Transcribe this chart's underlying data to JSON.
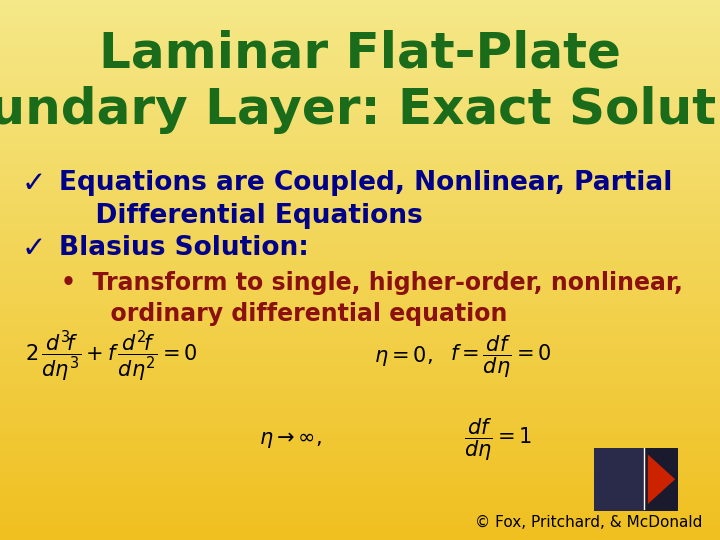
{
  "title_line1": "Laminar Flat-Plate",
  "title_line2": "Boundary Layer: Exact Solution",
  "title_color": "#1a6b1a",
  "title_fontsize": 36,
  "bg_color_top": "#f0c020",
  "bg_color_bottom": "#f5e888",
  "bullet_color": "#00008B",
  "sub_bullet_color": "#8B1010",
  "bullet_fontsize": 19,
  "sub_bullet_fontsize": 17,
  "eq_color": "#000000",
  "copyright": "© Fox, Pritchard, & McDonald",
  "copyright_color": "#000000",
  "copyright_fontsize": 11,
  "eq1": "$2\\,\\dfrac{d^3\\!f}{d\\eta^3} + f\\,\\dfrac{d^2\\!f}{d\\eta^2} = 0$",
  "eq2": "$\\eta = 0,$",
  "eq3": "$f = \\dfrac{df}{d\\eta} = 0$",
  "eq4": "$\\eta \\rightarrow \\infty,$",
  "eq5": "$\\dfrac{df}{d\\eta} = 1$"
}
